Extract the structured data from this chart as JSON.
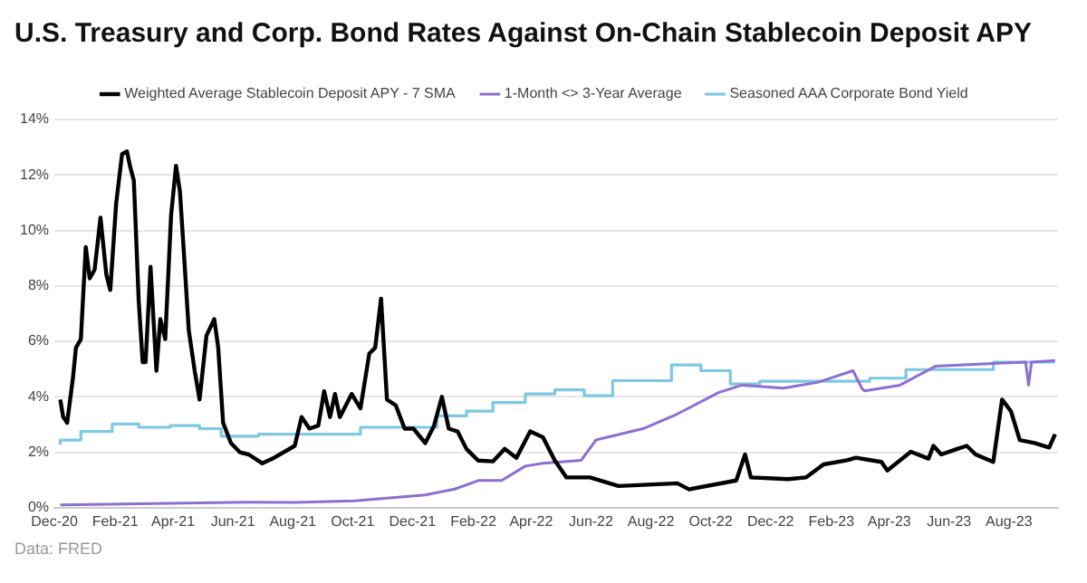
{
  "chart_data": {
    "type": "line",
    "title": "U.S. Treasury and Corp. Bond Rates Against On-Chain Stablecoin Deposit APY",
    "annotations": [
      "Data: FRED"
    ],
    "legend": "top",
    "grid": "y",
    "marker": "none",
    "xlim": [
      "2020-12-01",
      "2023-09-20"
    ],
    "xticks": [
      {
        "value": "2020-12-01",
        "label": "Dec-20"
      },
      {
        "value": "2021-02-01",
        "label": "Feb-21"
      },
      {
        "value": "2021-04-01",
        "label": "Apr-21"
      },
      {
        "value": "2021-06-01",
        "label": "Jun-21"
      },
      {
        "value": "2021-08-01",
        "label": "Aug-21"
      },
      {
        "value": "2021-10-01",
        "label": "Oct-21"
      },
      {
        "value": "2021-12-01",
        "label": "Dec-21"
      },
      {
        "value": "2022-02-01",
        "label": "Feb-22"
      },
      {
        "value": "2022-04-01",
        "label": "Apr-22"
      },
      {
        "value": "2022-06-01",
        "label": "Jun-22"
      },
      {
        "value": "2022-08-01",
        "label": "Aug-22"
      },
      {
        "value": "2022-10-01",
        "label": "Oct-22"
      },
      {
        "value": "2022-12-01",
        "label": "Dec-22"
      },
      {
        "value": "2023-02-01",
        "label": "Feb-23"
      },
      {
        "value": "2023-04-01",
        "label": "Apr-23"
      },
      {
        "value": "2023-06-01",
        "label": "Jun-23"
      },
      {
        "value": "2023-08-01",
        "label": "Aug-23"
      }
    ],
    "ylim": [
      0,
      14
    ],
    "yticks": [
      {
        "value": 0,
        "label": "0%"
      },
      {
        "value": 2,
        "label": "2%"
      },
      {
        "value": 4,
        "label": "4%"
      },
      {
        "value": 6,
        "label": "6%"
      },
      {
        "value": 8,
        "label": "8%"
      },
      {
        "value": 10,
        "label": "10%"
      },
      {
        "value": 12,
        "label": "12%"
      },
      {
        "value": 14,
        "label": "14%"
      }
    ],
    "series": [
      {
        "name": "Weighted Average Stablecoin Deposit APY - 7 SMA",
        "color": "#000000",
        "x": [
          "2020-12-07",
          "2020-12-10",
          "2020-12-14",
          "2020-12-20",
          "2020-12-23",
          "2020-12-28",
          "2021-01-02",
          "2021-01-06",
          "2021-01-11",
          "2021-01-17",
          "2021-01-23",
          "2021-01-27",
          "2021-02-02",
          "2021-02-08",
          "2021-02-13",
          "2021-02-16",
          "2021-02-20",
          "2021-02-25",
          "2021-03-01",
          "2021-03-04",
          "2021-03-09",
          "2021-03-15",
          "2021-03-19",
          "2021-03-24",
          "2021-03-30",
          "2021-04-04",
          "2021-04-08",
          "2021-04-12",
          "2021-04-17",
          "2021-04-23",
          "2021-04-28",
          "2021-05-05",
          "2021-05-13",
          "2021-05-17",
          "2021-05-22",
          "2021-05-30",
          "2021-06-08",
          "2021-06-17",
          "2021-07-01",
          "2021-07-13",
          "2021-08-03",
          "2021-08-10",
          "2021-08-18",
          "2021-08-27",
          "2021-09-02",
          "2021-09-08",
          "2021-09-13",
          "2021-09-18",
          "2021-09-30",
          "2021-10-09",
          "2021-10-18",
          "2021-10-24",
          "2021-10-30",
          "2021-11-05",
          "2021-11-14",
          "2021-11-23",
          "2021-12-02",
          "2021-12-14",
          "2021-12-23",
          "2021-12-31",
          "2022-01-07",
          "2022-01-16",
          "2022-01-25",
          "2022-02-06",
          "2022-02-21",
          "2022-03-05",
          "2022-03-17",
          "2022-03-31",
          "2022-04-13",
          "2022-04-25",
          "2022-05-07",
          "2022-05-31",
          "2022-06-29",
          "2022-08-28",
          "2022-09-09",
          "2022-10-27",
          "2022-11-05",
          "2022-11-11",
          "2022-12-19",
          "2023-01-06",
          "2023-01-24",
          "2023-02-17",
          "2023-02-26",
          "2023-03-24",
          "2023-03-30",
          "2023-04-23",
          "2023-05-11",
          "2023-05-16",
          "2023-05-24",
          "2023-06-10",
          "2023-06-19",
          "2023-06-28",
          "2023-07-16",
          "2023-07-25",
          "2023-08-03",
          "2023-08-12",
          "2023-08-27",
          "2023-09-11",
          "2023-09-17"
        ],
        "values": [
          3.9,
          3.27,
          3.06,
          4.7,
          5.77,
          6.08,
          9.4,
          8.27,
          8.58,
          10.46,
          8.4,
          7.85,
          10.98,
          12.75,
          12.85,
          12.33,
          11.8,
          7.44,
          5.25,
          5.25,
          8.69,
          4.94,
          6.8,
          6.08,
          10.56,
          12.33,
          11.4,
          9.2,
          6.4,
          4.94,
          3.9,
          6.2,
          6.8,
          5.77,
          3.06,
          2.33,
          2.0,
          1.92,
          1.6,
          1.8,
          2.23,
          3.27,
          2.85,
          2.96,
          4.2,
          3.27,
          4.1,
          3.27,
          4.1,
          3.58,
          5.56,
          5.77,
          7.54,
          3.9,
          3.69,
          2.85,
          2.85,
          2.33,
          2.96,
          4.0,
          2.85,
          2.75,
          2.12,
          1.7,
          1.67,
          2.12,
          1.8,
          2.75,
          2.54,
          1.71,
          1.09,
          1.09,
          0.78,
          0.88,
          0.66,
          0.98,
          1.92,
          1.09,
          1.03,
          1.09,
          1.56,
          1.71,
          1.8,
          1.65,
          1.34,
          2.02,
          1.77,
          2.23,
          1.92,
          2.13,
          2.23,
          1.92,
          1.65,
          3.9,
          3.48,
          2.44,
          2.33,
          2.17,
          2.65
        ]
      },
      {
        "name": "1-Month <> 3-Year Average",
        "color": "#8c6fd1",
        "x": [
          "2020-12-07",
          "2021-06-17",
          "2021-08-03",
          "2021-10-03",
          "2021-11-08",
          "2021-12-14",
          "2022-01-13",
          "2022-02-06",
          "2022-03-02",
          "2022-03-26",
          "2022-04-13",
          "2022-05-22",
          "2022-06-06",
          "2022-07-24",
          "2022-08-28",
          "2022-10-09",
          "2022-11-02",
          "2022-12-14",
          "2023-01-18",
          "2023-02-23",
          "2023-03-04",
          "2023-03-07",
          "2023-04-12",
          "2023-05-18",
          "2023-07-16",
          "2023-08-18",
          "2023-08-21",
          "2023-08-24",
          "2023-09-17"
        ],
        "values": [
          0.1,
          0.2,
          0.19,
          0.25,
          0.35,
          0.46,
          0.67,
          0.98,
          0.98,
          1.5,
          1.6,
          1.71,
          2.44,
          2.85,
          3.38,
          4.15,
          4.42,
          4.31,
          4.52,
          4.94,
          4.31,
          4.21,
          4.42,
          5.1,
          5.2,
          5.25,
          4.42,
          5.25,
          5.31
        ]
      },
      {
        "name": "Seasoned AAA Corporate Bond Yield",
        "color": "#7ec8e3",
        "type": "step",
        "x": [
          "2020-12-07",
          "2020-12-28",
          "2021-01-29",
          "2021-02-25",
          "2021-03-29",
          "2021-04-28",
          "2021-05-20",
          "2021-06-27",
          "2021-10-09",
          "2021-12-26",
          "2022-01-25",
          "2022-02-21",
          "2022-03-26",
          "2022-04-25",
          "2022-05-25",
          "2022-06-23",
          "2022-08-22",
          "2022-09-21",
          "2022-10-21",
          "2022-11-20",
          "2023-03-12",
          "2023-04-18",
          "2023-07-16",
          "2023-08-21",
          "2023-09-17"
        ],
        "values": [
          2.27,
          2.44,
          2.75,
          3.02,
          2.9,
          2.96,
          2.85,
          2.58,
          2.65,
          2.9,
          3.31,
          3.48,
          3.79,
          4.1,
          4.25,
          4.04,
          4.58,
          5.15,
          4.94,
          4.46,
          4.56,
          4.67,
          4.98,
          5.25,
          5.25
        ]
      }
    ]
  }
}
